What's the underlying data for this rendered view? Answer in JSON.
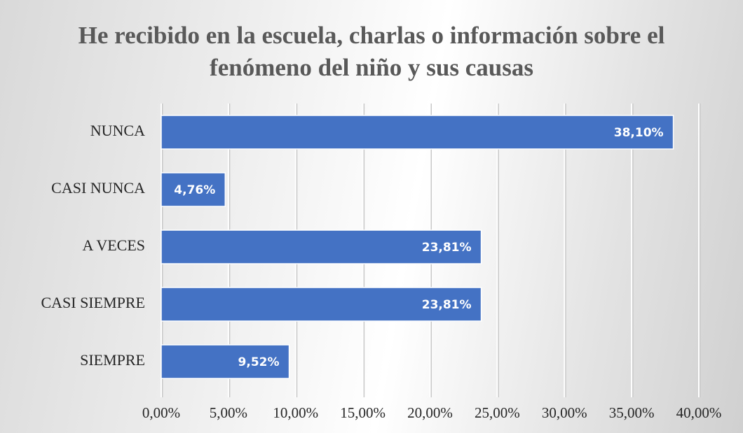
{
  "chart_data": {
    "type": "bar",
    "orientation": "horizontal",
    "title": "He recibido en la escuela, charlas o información sobre el fenómeno del niño y sus causas",
    "categories": [
      "NUNCA",
      "CASI NUNCA",
      "A VECES",
      "CASI SIEMPRE",
      "SIEMPRE"
    ],
    "values": [
      38.1,
      4.76,
      23.81,
      23.81,
      9.52
    ],
    "value_labels": [
      "38,10%",
      "4,76%",
      "23,81%",
      "23,81%",
      "9,52%"
    ],
    "color": "#4472c4",
    "xlim": [
      0,
      40
    ],
    "xticks": [
      {
        "value": 0,
        "label": "0,00%"
      },
      {
        "value": 5,
        "label": "5,00%"
      },
      {
        "value": 10,
        "label": "10,00%"
      },
      {
        "value": 15,
        "label": "15,00%"
      },
      {
        "value": 20,
        "label": "20,00%"
      },
      {
        "value": 25,
        "label": "25,00%"
      },
      {
        "value": 30,
        "label": "30,00%"
      },
      {
        "value": 35,
        "label": "35,00%"
      },
      {
        "value": 40,
        "label": "40,00%"
      }
    ],
    "grid": true
  }
}
